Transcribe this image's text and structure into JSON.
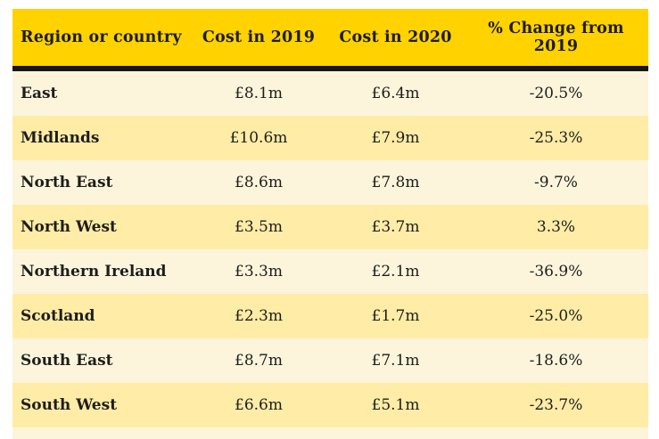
{
  "colors": {
    "header_background": "#ffd200",
    "row_light_cream": "#fcf5dc",
    "row_light_yellow": "#ffeca6",
    "header_divider": "#161613",
    "text": "#1d1d1b",
    "page_background": "#ffffff"
  },
  "chart_data": {
    "type": "table",
    "columns": [
      "Region or country",
      "Cost in 2019",
      "Cost in 2020",
      "% Change from 2019"
    ],
    "rows": [
      [
        "East",
        "£8.1m",
        "£6.4m",
        "-20.5%"
      ],
      [
        "Midlands",
        "£10.6m",
        "£7.9m",
        "-25.3%"
      ],
      [
        "North East",
        "£8.6m",
        "£7.8m",
        "-9.7%"
      ],
      [
        "North West",
        "£3.5m",
        "£3.7m",
        "3.3%"
      ],
      [
        "Northern Ireland",
        "£3.3m",
        "£2.1m",
        "-36.9%"
      ],
      [
        "Scotland",
        "£2.3m",
        "£1.7m",
        "-25.0%"
      ],
      [
        "South East",
        "£8.7m",
        "£7.1m",
        "-18.6%"
      ],
      [
        "South West",
        "£6.6m",
        "£5.1m",
        "-23.7%"
      ]
    ],
    "numeric": {
      "cost_2019_millions_gbp": [
        8.1,
        10.6,
        8.6,
        3.5,
        3.3,
        2.3,
        8.7,
        6.6
      ],
      "cost_2020_millions_gbp": [
        6.4,
        7.9,
        7.8,
        3.7,
        2.1,
        1.7,
        7.1,
        5.1
      ],
      "percent_change_from_2019": [
        -20.5,
        -25.3,
        -9.7,
        3.3,
        -36.9,
        -25.0,
        -18.6,
        -23.7
      ]
    },
    "layout": {
      "row_striping": "alternating cream / light-yellow starting with cream",
      "header_style": "bold dark text on brand yellow with thick black underline",
      "last_row_partial": true
    }
  }
}
